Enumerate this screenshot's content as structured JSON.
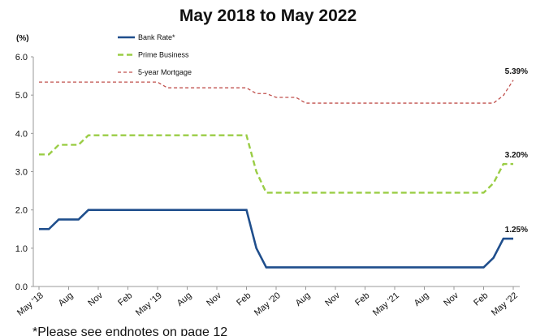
{
  "chart_data": {
    "type": "line",
    "title": "May 2018 to May 2022",
    "y_unit_label": "(%)",
    "footnote": "*Please see endnotes on page 12",
    "categories": [
      "May '18",
      null,
      null,
      "Aug",
      null,
      null,
      "Nov",
      null,
      null,
      "Feb",
      null,
      null,
      "May '19",
      null,
      null,
      "Aug",
      null,
      null,
      "Nov",
      null,
      null,
      "Feb",
      null,
      null,
      "May '20",
      null,
      null,
      "Aug",
      null,
      null,
      "Nov",
      null,
      null,
      "Feb",
      null,
      null,
      "May '21",
      null,
      null,
      "Aug",
      null,
      null,
      "Nov",
      null,
      null,
      "Feb",
      null,
      null,
      "May '22"
    ],
    "ylim": [
      0,
      6
    ],
    "yticks": [
      {
        "value": 0,
        "label": "0.0"
      },
      {
        "value": 1,
        "label": "1.0"
      },
      {
        "value": 2,
        "label": "2.0"
      },
      {
        "value": 3,
        "label": "3.0"
      },
      {
        "value": 4,
        "label": "4.0"
      },
      {
        "value": 5,
        "label": "5.0"
      },
      {
        "value": 6,
        "label": "6.0"
      }
    ],
    "series": [
      {
        "name": "Bank Rate*",
        "color": "#1f4e8c",
        "line_style": "solid",
        "values": [
          1.5,
          1.5,
          1.75,
          1.75,
          1.75,
          2.0,
          2.0,
          2.0,
          2.0,
          2.0,
          2.0,
          2.0,
          2.0,
          2.0,
          2.0,
          2.0,
          2.0,
          2.0,
          2.0,
          2.0,
          2.0,
          2.0,
          1.0,
          0.5,
          0.5,
          0.5,
          0.5,
          0.5,
          0.5,
          0.5,
          0.5,
          0.5,
          0.5,
          0.5,
          0.5,
          0.5,
          0.5,
          0.5,
          0.5,
          0.5,
          0.5,
          0.5,
          0.5,
          0.5,
          0.5,
          0.5,
          0.75,
          1.25,
          1.25
        ],
        "value_labels": [
          null,
          null,
          null,
          null,
          null,
          null,
          null,
          null,
          null,
          null,
          null,
          null,
          null,
          null,
          null,
          null,
          null,
          null,
          null,
          null,
          null,
          null,
          null,
          null,
          null,
          null,
          null,
          null,
          null,
          null,
          null,
          null,
          null,
          null,
          null,
          null,
          null,
          null,
          null,
          null,
          null,
          null,
          null,
          null,
          null,
          null,
          null,
          null,
          "1.25%"
        ]
      },
      {
        "name": "Prime Business",
        "color": "#9acd45",
        "line_style": "dashed",
        "values": [
          3.45,
          3.45,
          3.7,
          3.7,
          3.7,
          3.95,
          3.95,
          3.95,
          3.95,
          3.95,
          3.95,
          3.95,
          3.95,
          3.95,
          3.95,
          3.95,
          3.95,
          3.95,
          3.95,
          3.95,
          3.95,
          3.95,
          3.0,
          2.45,
          2.45,
          2.45,
          2.45,
          2.45,
          2.45,
          2.45,
          2.45,
          2.45,
          2.45,
          2.45,
          2.45,
          2.45,
          2.45,
          2.45,
          2.45,
          2.45,
          2.45,
          2.45,
          2.45,
          2.45,
          2.45,
          2.45,
          2.7,
          3.2,
          3.2
        ],
        "value_labels": [
          null,
          null,
          null,
          null,
          null,
          null,
          null,
          null,
          null,
          null,
          null,
          null,
          null,
          null,
          null,
          null,
          null,
          null,
          null,
          null,
          null,
          null,
          null,
          null,
          null,
          null,
          null,
          null,
          null,
          null,
          null,
          null,
          null,
          null,
          null,
          null,
          null,
          null,
          null,
          null,
          null,
          null,
          null,
          null,
          null,
          null,
          null,
          null,
          "3.20%"
        ]
      },
      {
        "name": "5-year Mortgage",
        "color": "#c0504d",
        "line_style": "dotted",
        "values": [
          5.34,
          5.34,
          5.34,
          5.34,
          5.34,
          5.34,
          5.34,
          5.34,
          5.34,
          5.34,
          5.34,
          5.34,
          5.34,
          5.19,
          5.19,
          5.19,
          5.19,
          5.19,
          5.19,
          5.19,
          5.19,
          5.19,
          5.04,
          5.04,
          4.94,
          4.94,
          4.94,
          4.79,
          4.79,
          4.79,
          4.79,
          4.79,
          4.79,
          4.79,
          4.79,
          4.79,
          4.79,
          4.79,
          4.79,
          4.79,
          4.79,
          4.79,
          4.79,
          4.79,
          4.79,
          4.79,
          4.79,
          4.99,
          5.39
        ],
        "value_labels": [
          null,
          null,
          null,
          null,
          null,
          null,
          null,
          null,
          null,
          null,
          null,
          null,
          null,
          null,
          null,
          null,
          null,
          null,
          null,
          null,
          null,
          null,
          null,
          null,
          null,
          null,
          null,
          null,
          null,
          null,
          null,
          null,
          null,
          null,
          null,
          null,
          null,
          null,
          null,
          null,
          null,
          null,
          null,
          null,
          null,
          null,
          null,
          null,
          "5.39%"
        ]
      }
    ]
  }
}
